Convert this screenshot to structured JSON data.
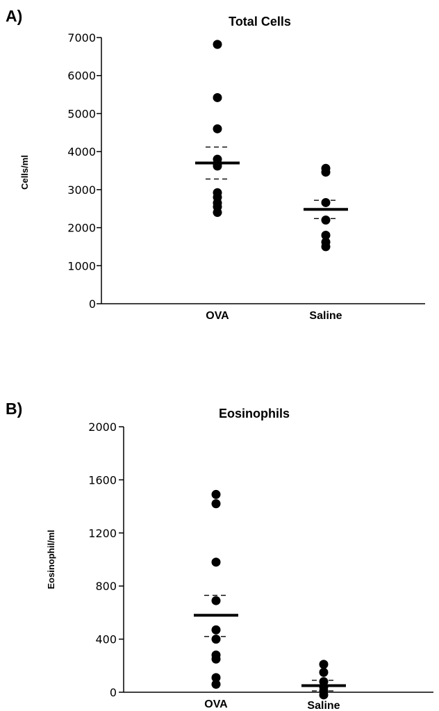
{
  "chart_data": [
    {
      "type": "scatter",
      "panel": "A)",
      "title": "Total Cells",
      "ylabel": "Cells/ml",
      "xlabel": "",
      "categories": [
        "OVA",
        "Saline"
      ],
      "yticks": [
        "0",
        "1000",
        "2000",
        "3000",
        "4000",
        "5000",
        "6000",
        "7000"
      ],
      "ylim": [
        0,
        7000
      ],
      "grid": false,
      "series": [
        {
          "values": [
            [
              6820,
              5420,
              4600,
              3800,
              3680,
              3620,
              2920,
              2800,
              2650,
              2550,
              2400
            ],
            [
              3560,
              3460,
              2660,
              2200,
              1800,
              1620,
              1500
            ]
          ]
        }
      ],
      "means": [
        3700,
        2480
      ],
      "error_upper": [
        4120,
        2720
      ],
      "error_lower": [
        3280,
        2240
      ]
    },
    {
      "type": "scatter",
      "panel": "B)",
      "title": "Eosinophils",
      "ylabel": "Eosinophil/ml",
      "xlabel": "",
      "categories": [
        "OVA",
        "Saline"
      ],
      "yticks": [
        "0",
        "400",
        "800",
        "1200",
        "1600",
        "2000"
      ],
      "ylim": [
        0,
        2000
      ],
      "grid": false,
      "series": [
        {
          "values": [
            [
              1490,
              1420,
              980,
              690,
              470,
              400,
              280,
              250,
              110,
              60
            ],
            [
              210,
              150,
              80,
              40,
              10,
              -20
            ]
          ]
        }
      ],
      "means": [
        580,
        50
      ],
      "error_upper": [
        730,
        90
      ],
      "error_lower": [
        420,
        10
      ]
    }
  ]
}
